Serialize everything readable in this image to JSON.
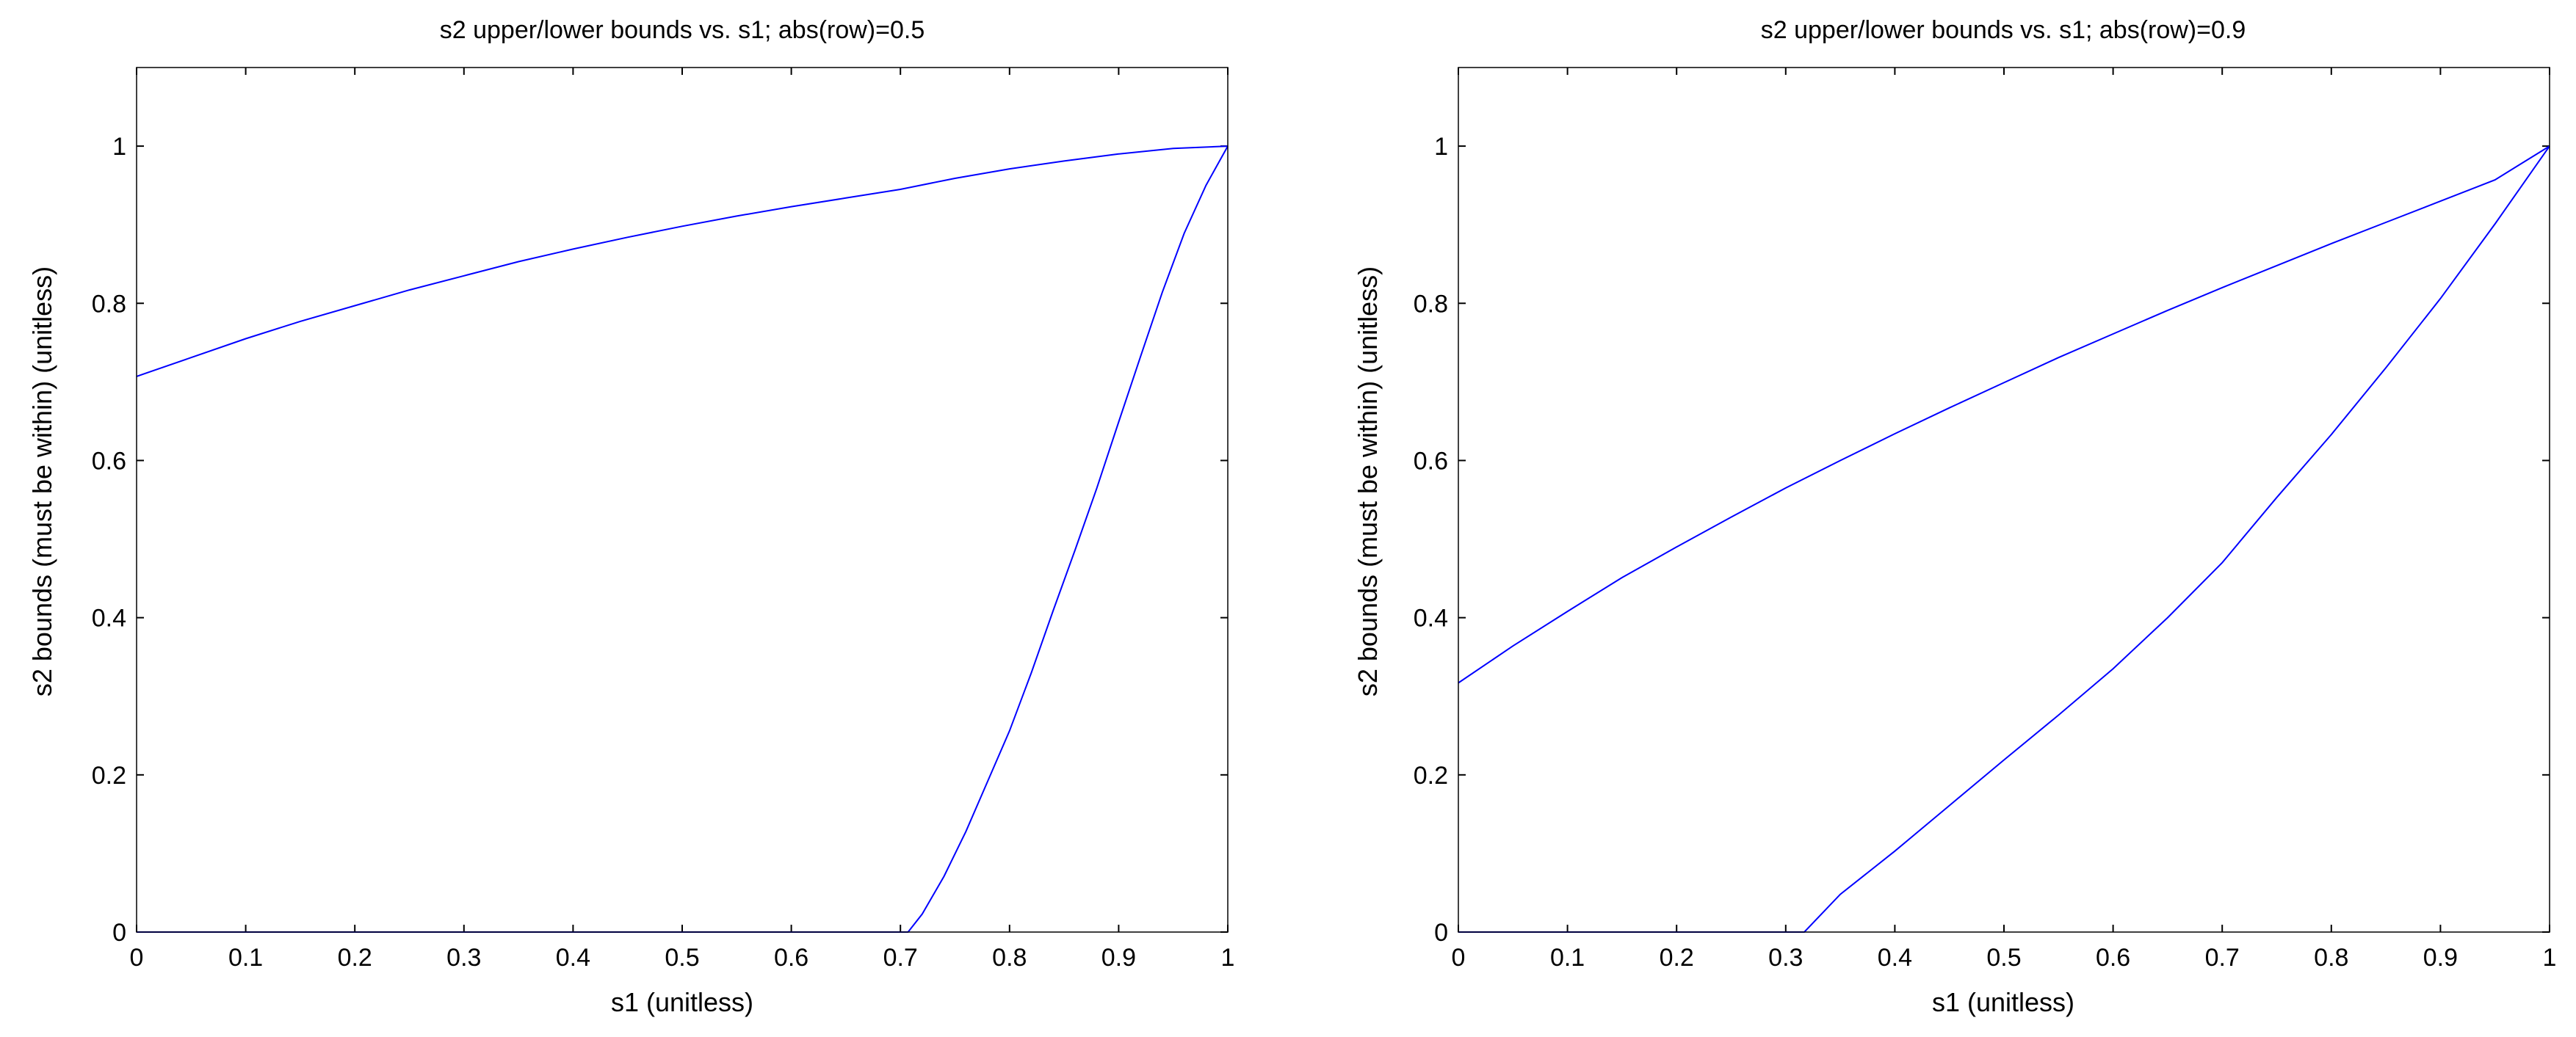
{
  "chart_data": [
    {
      "type": "line",
      "title": "s2 upper/lower bounds vs. s1; abs(row)=0.5",
      "xlabel": "s1 (unitless)",
      "ylabel": "s2 bounds (must be within) (unitless)",
      "xlim": [
        0,
        1
      ],
      "ylim": [
        0,
        1.1
      ],
      "xticks": [
        0,
        0.1,
        0.2,
        0.3,
        0.4,
        0.5,
        0.6,
        0.7,
        0.8,
        0.9,
        1
      ],
      "xtick_labels": [
        "0",
        "0.1",
        "0.2",
        "0.3",
        "0.4",
        "0.5",
        "0.6",
        "0.7",
        "0.8",
        "0.9",
        "1"
      ],
      "yticks": [
        0,
        0.2,
        0.4,
        0.6,
        0.8,
        1
      ],
      "ytick_labels": [
        "0",
        "0.2",
        "0.4",
        "0.6",
        "0.8",
        "1"
      ],
      "grid": false,
      "color": "#0000ff",
      "series": [
        {
          "x": [
            0,
            0.05,
            0.1,
            0.15,
            0.2,
            0.25,
            0.3,
            0.35,
            0.4,
            0.45,
            0.5,
            0.55,
            0.6,
            0.65,
            0.7,
            0.75,
            0.8,
            0.85,
            0.9,
            0.95,
            1
          ],
          "values": [
            0.707,
            0.731,
            0.755,
            0.777,
            0.797,
            0.817,
            0.835,
            0.853,
            0.869,
            0.884,
            0.898,
            0.911,
            0.923,
            0.934,
            0.945,
            0.959,
            0.971,
            0.981,
            0.99,
            0.997,
            1.0
          ]
        },
        {
          "x": [
            0,
            0.05,
            0.1,
            0.15,
            0.2,
            0.25,
            0.3,
            0.35,
            0.4,
            0.45,
            0.5,
            0.55,
            0.6,
            0.65,
            0.7,
            0.707,
            0.72,
            0.74,
            0.76,
            0.78,
            0.8,
            0.82,
            0.84,
            0.86,
            0.88,
            0.9,
            0.92,
            0.94,
            0.96,
            0.98,
            1
          ],
          "values": [
            0,
            0,
            0,
            0,
            0,
            0,
            0,
            0,
            0,
            0,
            0,
            0,
            0,
            0,
            0,
            0,
            0.023,
            0.071,
            0.128,
            0.192,
            0.256,
            0.33,
            0.409,
            0.486,
            0.565,
            0.649,
            0.732,
            0.814,
            0.889,
            0.95,
            1.0
          ]
        }
      ]
    },
    {
      "type": "line",
      "title": "s2 upper/lower bounds vs. s1; abs(row)=0.9",
      "xlabel": "s1 (unitless)",
      "ylabel": "s2 bounds (must be within) (unitless)",
      "xlim": [
        0,
        1
      ],
      "ylim": [
        0,
        1.1
      ],
      "xticks": [
        0,
        0.1,
        0.2,
        0.3,
        0.4,
        0.5,
        0.6,
        0.7,
        0.8,
        0.9,
        1
      ],
      "xtick_labels": [
        "0",
        "0.1",
        "0.2",
        "0.3",
        "0.4",
        "0.5",
        "0.6",
        "0.7",
        "0.8",
        "0.9",
        "1"
      ],
      "yticks": [
        0,
        0.2,
        0.4,
        0.6,
        0.8,
        1
      ],
      "ytick_labels": [
        "0",
        "0.2",
        "0.4",
        "0.6",
        "0.8",
        "1"
      ],
      "grid": false,
      "color": "#0000ff",
      "series": [
        {
          "x": [
            0,
            0.05,
            0.1,
            0.15,
            0.2,
            0.25,
            0.3,
            0.35,
            0.4,
            0.45,
            0.5,
            0.55,
            0.6,
            0.65,
            0.7,
            0.75,
            0.8,
            0.85,
            0.9,
            0.95,
            1
          ],
          "values": [
            0.317,
            0.364,
            0.408,
            0.451,
            0.49,
            0.528,
            0.565,
            0.6,
            0.634,
            0.667,
            0.699,
            0.731,
            0.761,
            0.791,
            0.82,
            0.848,
            0.876,
            0.903,
            0.93,
            0.957,
            1.0
          ]
        },
        {
          "x": [
            0,
            0.05,
            0.1,
            0.15,
            0.2,
            0.25,
            0.3,
            0.317,
            0.35,
            0.4,
            0.45,
            0.5,
            0.55,
            0.6,
            0.65,
            0.7,
            0.75,
            0.8,
            0.85,
            0.9,
            0.95,
            1
          ],
          "values": [
            0,
            0,
            0,
            0,
            0,
            0,
            0,
            0,
            0.048,
            0.103,
            0.161,
            0.219,
            0.276,
            0.335,
            0.4,
            0.47,
            0.553,
            0.633,
            0.718,
            0.806,
            0.901,
            1.0
          ]
        }
      ]
    }
  ]
}
